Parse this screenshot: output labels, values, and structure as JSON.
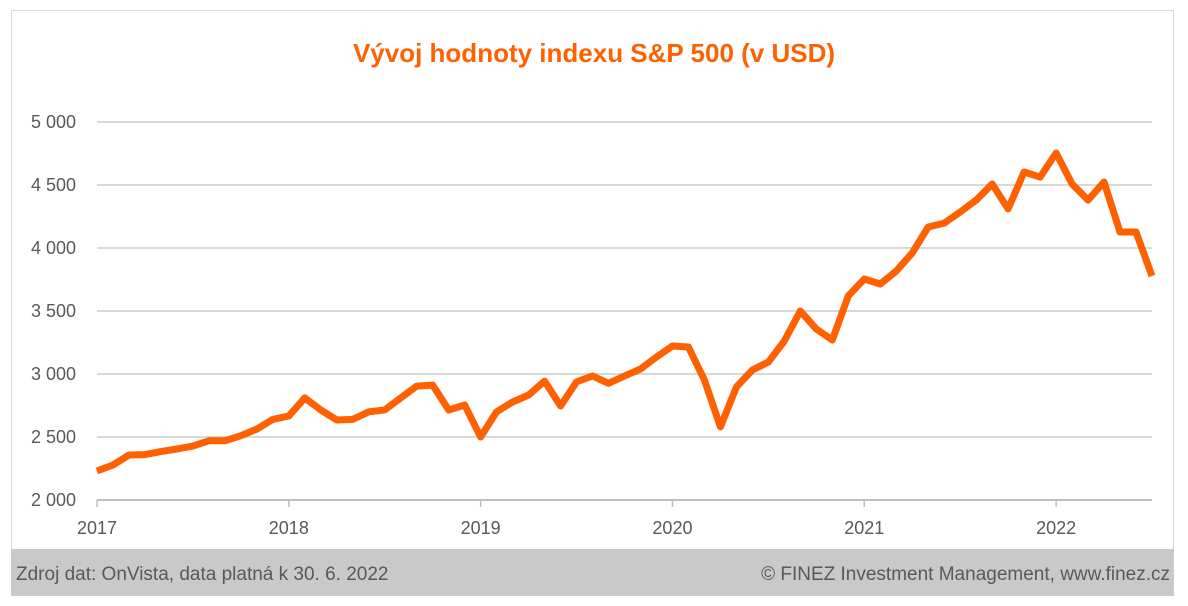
{
  "chart_data": {
    "type": "line",
    "title": "Vývoj hodnoty indexu S&P 500 (v USD)",
    "xlabel": "",
    "ylabel": "",
    "ylim": [
      2000,
      5000
    ],
    "xlim": [
      2017.0,
      2022.5
    ],
    "yticks": [
      2000,
      2500,
      3000,
      3500,
      4000,
      4500,
      5000
    ],
    "ytick_labels": [
      "2 000",
      "2 500",
      "3 000",
      "3 500",
      "4 000",
      "4 500",
      "5 000"
    ],
    "xticks": [
      2017,
      2018,
      2019,
      2020,
      2021,
      2022
    ],
    "xtick_labels": [
      "2017",
      "2018",
      "2019",
      "2020",
      "2021",
      "2022"
    ],
    "grid": true,
    "color": "#ff6000",
    "series": [
      {
        "name": "S&P 500",
        "start": "2017-01",
        "frequency": "monthly",
        "values": [
          2230,
          2278,
          2357,
          2360,
          2384,
          2405,
          2428,
          2470,
          2470,
          2510,
          2563,
          2640,
          2667,
          2810,
          2714,
          2635,
          2640,
          2700,
          2715,
          2810,
          2904,
          2912,
          2714,
          2754,
          2500,
          2700,
          2778,
          2833,
          2944,
          2746,
          2937,
          2984,
          2926,
          2984,
          3040,
          3135,
          3222,
          3214,
          2952,
          2580,
          2897,
          3032,
          3095,
          3262,
          3500,
          3357,
          3270,
          3620,
          3754,
          3714,
          3817,
          3960,
          4167,
          4198,
          4286,
          4380,
          4508,
          4310,
          4603,
          4563,
          4754,
          4508,
          4380,
          4524,
          4127,
          4127,
          3778
        ]
      }
    ]
  },
  "footer": {
    "source": "Zdroj dat: OnVista, data platná k 30.  6. 2022",
    "copyright": "© FINEZ Investment Management, www.finez.cz"
  }
}
